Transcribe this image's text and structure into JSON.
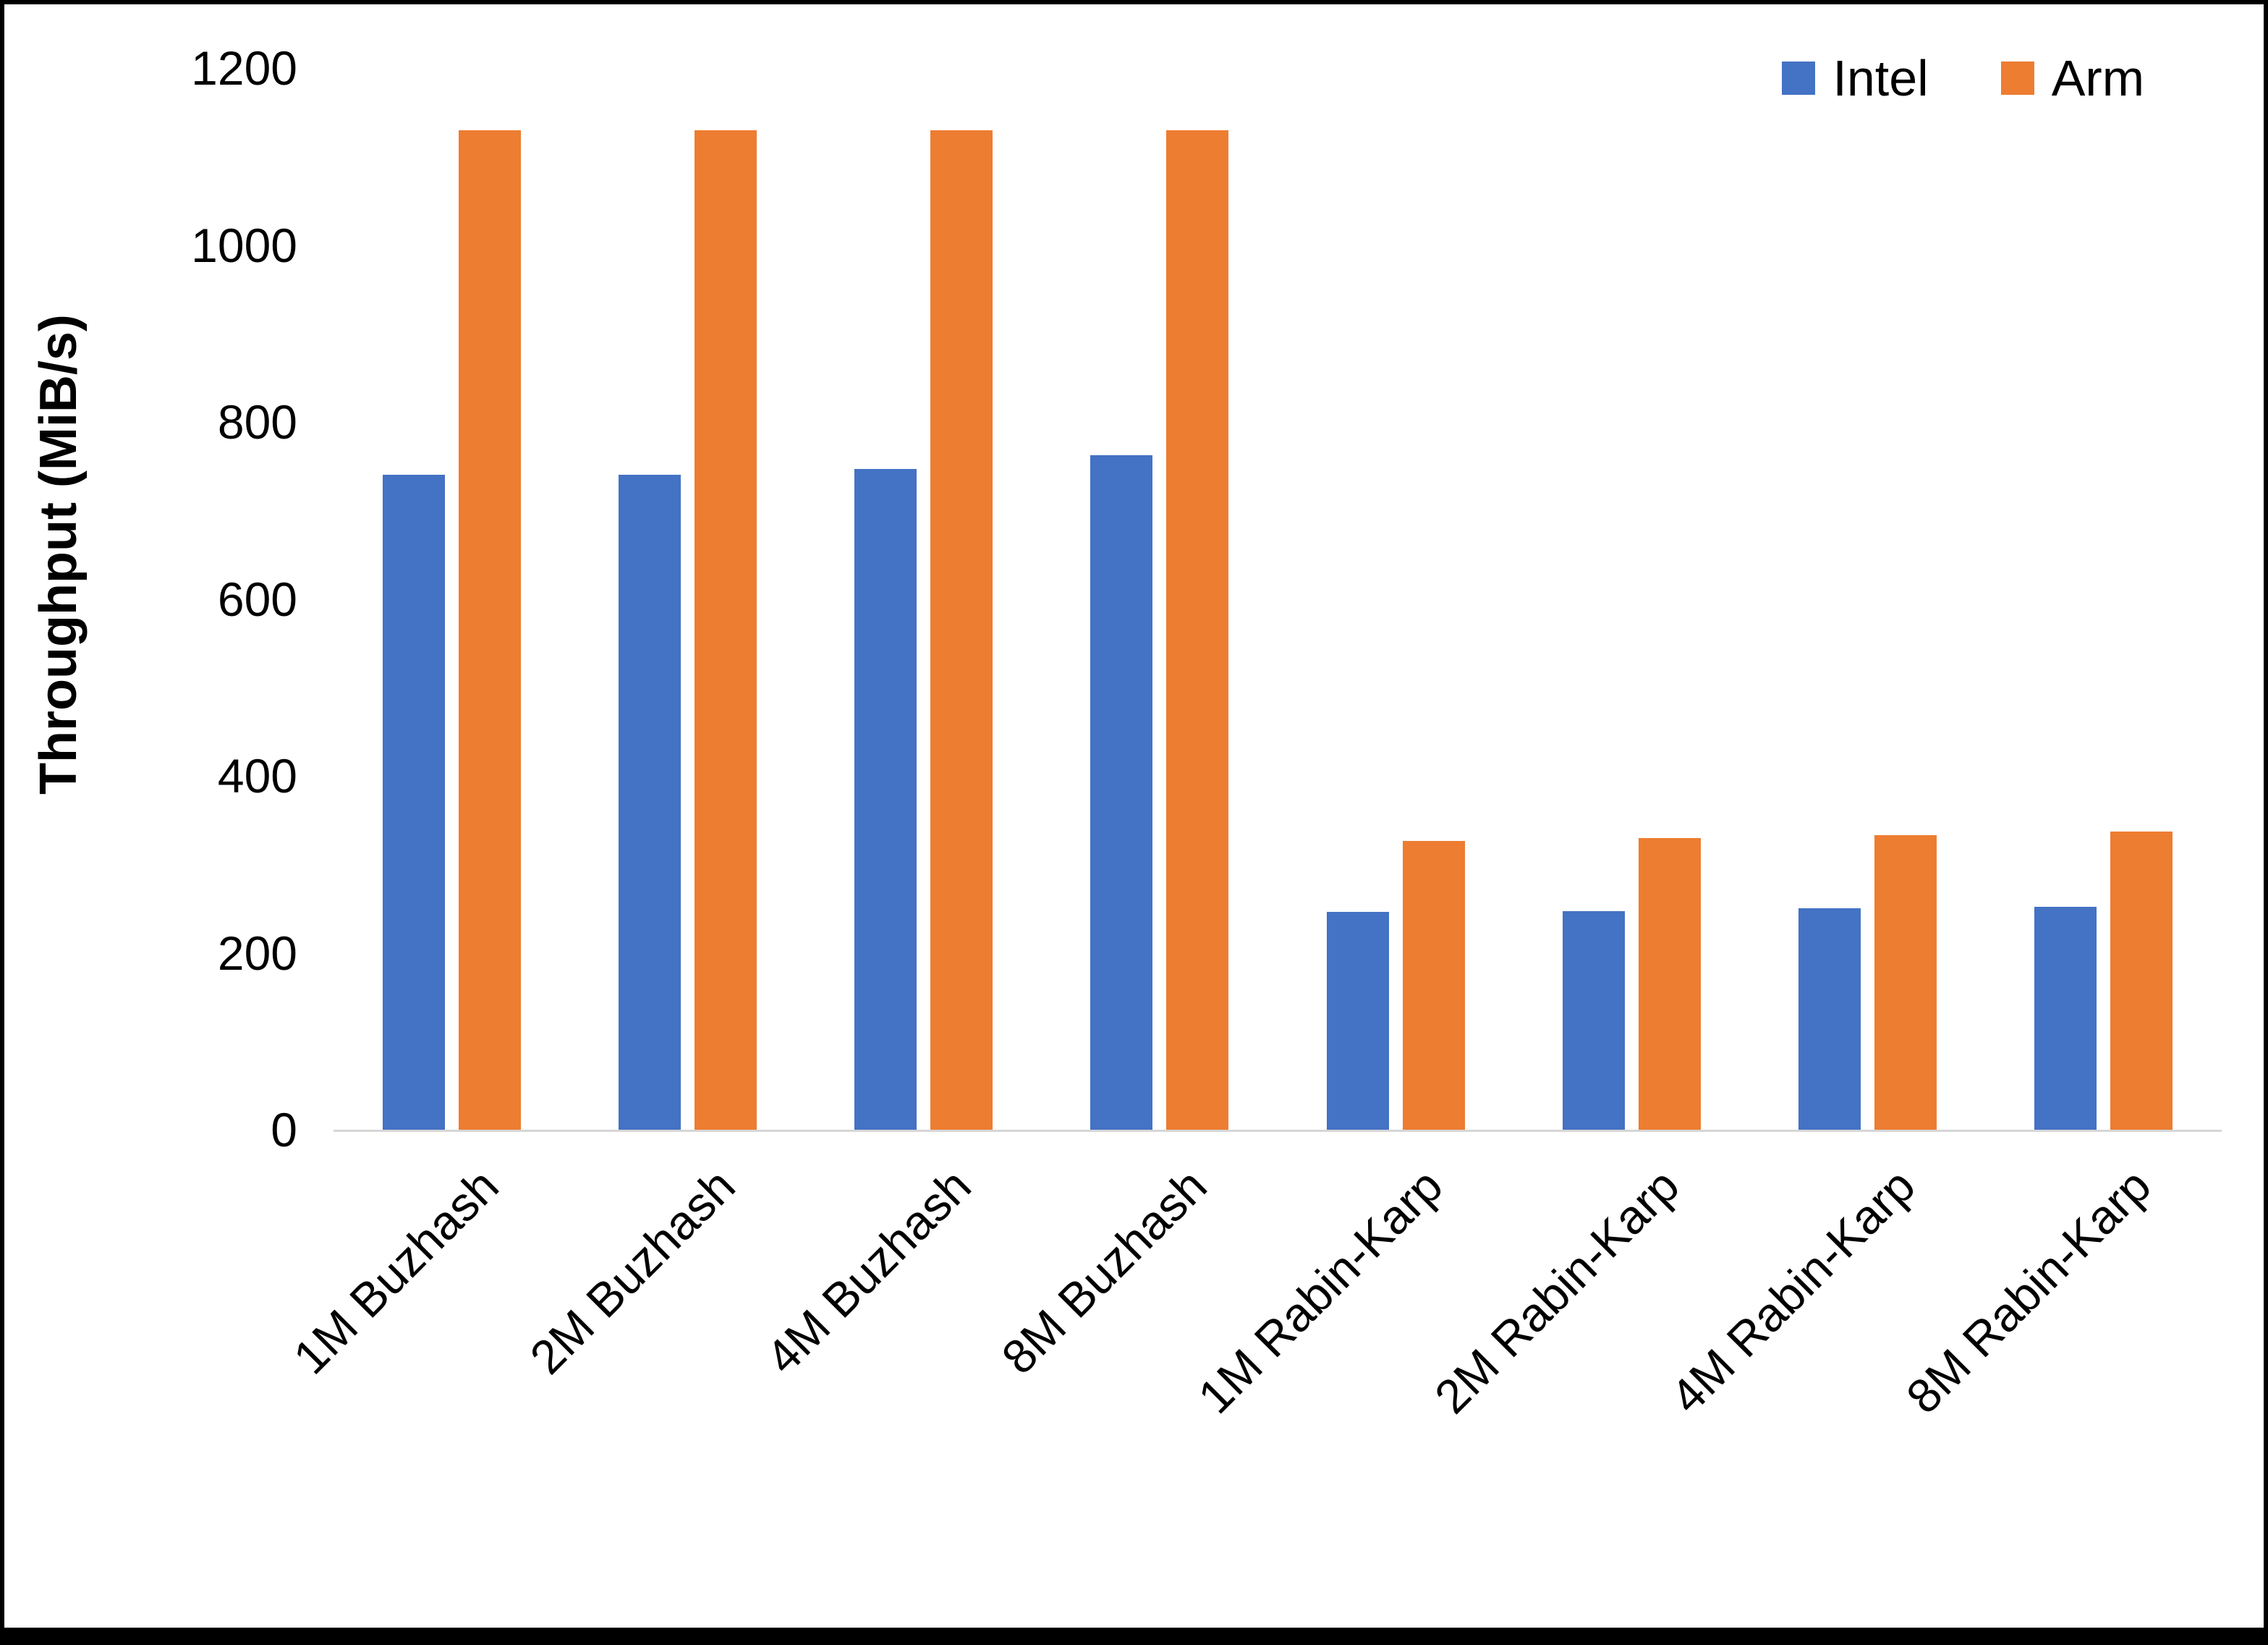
{
  "chart_data": {
    "type": "bar",
    "title": "",
    "xlabel": "",
    "ylabel": "Throughput (MiB/s)",
    "ylim": [
      0,
      1200
    ],
    "ytick_step": 200,
    "grid": false,
    "legend_position": "top-right",
    "categories": [
      "1M Buzhash",
      "2M Buzhash",
      "4M Buzhash",
      "8M Buzhash",
      "1M Rabin-Karp",
      "2M Rabin-Karp",
      "4M Rabin-Karp",
      "8M Rabin-Karp"
    ],
    "series": [
      {
        "name": "Intel",
        "color": "#4472C4",
        "values": [
          740,
          740,
          747,
          762,
          246,
          247,
          250,
          252
        ]
      },
      {
        "name": "Arm",
        "color": "#ED7D31",
        "values": [
          1130,
          1130,
          1130,
          1130,
          326,
          330,
          333,
          337
        ]
      }
    ]
  }
}
